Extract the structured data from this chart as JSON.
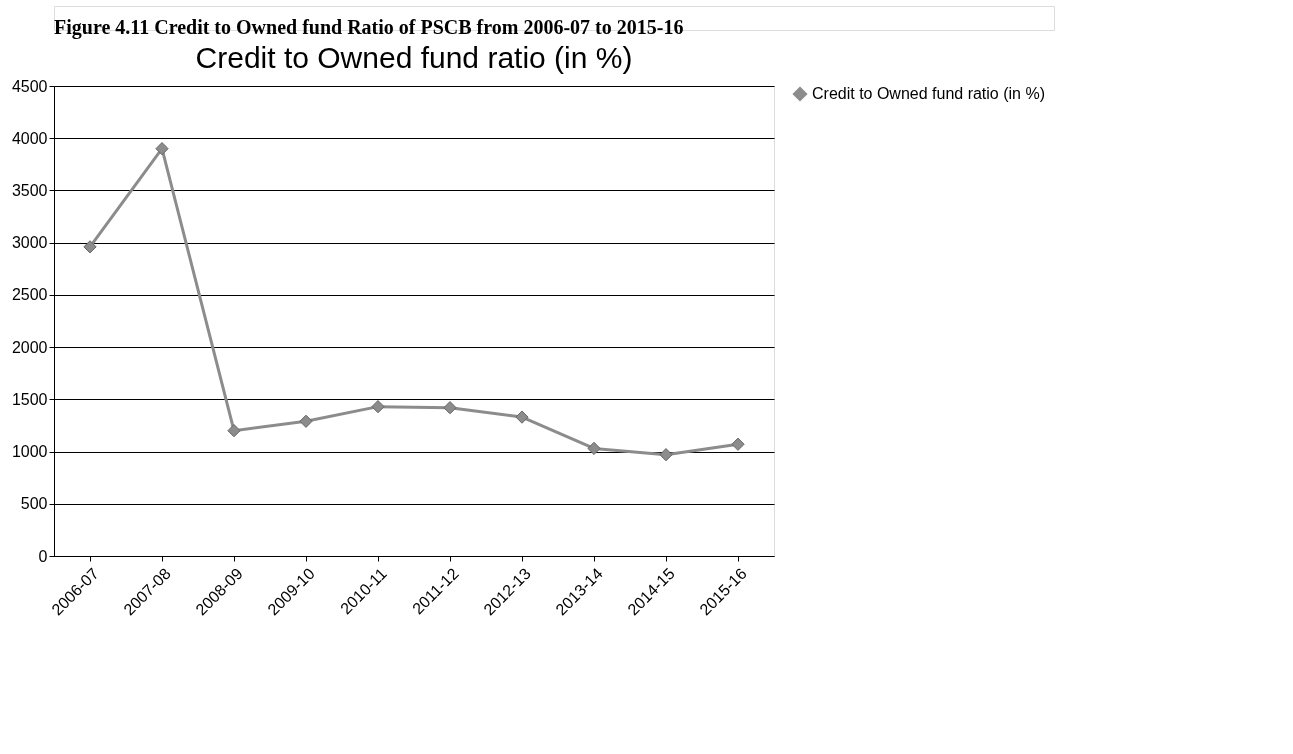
{
  "chart_data": {
    "type": "line",
    "title": "Credit to Owned fund ratio (in %)",
    "annotations": [
      "Figure 4.11 Credit to Owned fund Ratio of PSCB from 2006-07 to 2015-16"
    ],
    "categories": [
      "2006-07",
      "2007-08",
      "2008-09",
      "2009-10",
      "2010-11",
      "2011-12",
      "2012-13",
      "2013-14",
      "2014-15",
      "2015-16"
    ],
    "series": [
      {
        "name": "Credit to Owned fund ratio (in %)",
        "color": "#8c8c8c",
        "values": [
          2960,
          3900,
          1200,
          1290,
          1430,
          1420,
          1330,
          1030,
          970,
          1070
        ]
      }
    ],
    "ylim": [
      0,
      4500
    ],
    "yticks": [
      0,
      500,
      1000,
      1500,
      2000,
      2500,
      3000,
      3500,
      4000,
      4500
    ],
    "grid": "y",
    "legend": "right",
    "marker": "diamond",
    "line_style": "solid"
  }
}
